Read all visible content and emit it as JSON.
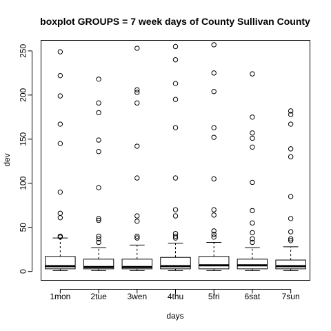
{
  "chart_data": {
    "type": "boxplot",
    "title": "boxplot GROUPS = 7 week days of County Sullivan County",
    "xlabel": "days",
    "ylabel": "dev",
    "ylim": [
      -10,
      262
    ],
    "yticks": [
      0,
      50,
      100,
      150,
      200,
      250
    ],
    "grid": false,
    "categories": [
      "1mon",
      "2tue",
      "3wen",
      "4thu",
      "5fri",
      "6sat",
      "7sun"
    ],
    "boxes": [
      {
        "min": 1,
        "q1": 3,
        "median": 6,
        "q3": 17,
        "max": 38,
        "outliers": [
          249,
          222,
          199,
          167,
          145,
          90,
          66,
          61,
          40,
          39
        ]
      },
      {
        "min": 1,
        "q1": 3,
        "median": 5,
        "q3": 14,
        "max": 27,
        "outliers": [
          218,
          191,
          180,
          149,
          136,
          95,
          60,
          58,
          40,
          37,
          33
        ]
      },
      {
        "min": 1,
        "q1": 3,
        "median": 5,
        "q3": 14,
        "max": 30,
        "outliers": [
          253,
          206,
          203,
          191,
          142,
          106,
          63,
          57,
          40,
          38
        ]
      },
      {
        "min": 1,
        "q1": 3,
        "median": 6,
        "q3": 16,
        "max": 32,
        "outliers": [
          255,
          240,
          213,
          195,
          163,
          106,
          70,
          63,
          43,
          40,
          38
        ]
      },
      {
        "min": 1,
        "q1": 3,
        "median": 7,
        "q3": 17,
        "max": 33,
        "outliers": [
          257,
          225,
          204,
          163,
          152,
          105,
          70,
          64,
          46,
          42,
          39
        ]
      },
      {
        "min": 1,
        "q1": 3,
        "median": 7,
        "q3": 14,
        "max": 27,
        "outliers": [
          224,
          175,
          157,
          151,
          141,
          101,
          69,
          55,
          44,
          37,
          33
        ]
      },
      {
        "min": 1,
        "q1": 3,
        "median": 6,
        "q3": 13,
        "max": 28,
        "outliers": [
          182,
          178,
          167,
          139,
          130,
          85,
          60,
          45,
          37,
          35
        ]
      }
    ]
  }
}
